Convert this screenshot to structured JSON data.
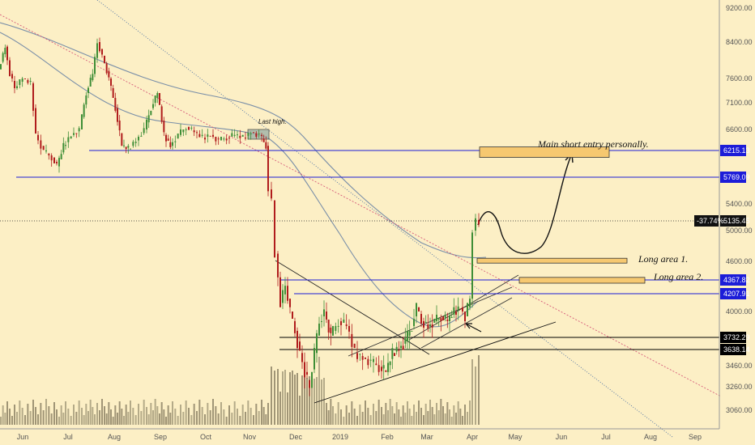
{
  "chart_data": {
    "type": "candlestick",
    "y_axis_ticks": [
      9200,
      8400,
      7600,
      7100,
      6600,
      6215.13,
      5769.09,
      5400,
      5135.45,
      5000,
      4600,
      4367.82,
      4207.91,
      4000,
      3732.29,
      3638.14,
      3460,
      3260,
      3060
    ],
    "x_axis_ticks": [
      "Jun",
      "Jul",
      "Aug",
      "Sep",
      "Oct",
      "Nov",
      "Dec",
      "2019",
      "Feb",
      "Mar",
      "Apr",
      "May",
      "Jun",
      "Jul",
      "Aug",
      "Sep"
    ],
    "horizontal_levels": [
      {
        "label": "6215.13",
        "value": 6215.13,
        "color": "#1c1cd8"
      },
      {
        "label": "5769.09",
        "value": 5769.09,
        "color": "#1c1cd8"
      },
      {
        "label": "4367.82",
        "value": 4367.82,
        "color": "#1c1cd8"
      },
      {
        "label": "4207.91",
        "value": 4207.91,
        "color": "#1c1cd8"
      },
      {
        "label": "3732.29",
        "value": 3732.29,
        "color": "#000000"
      },
      {
        "label": "3638.14",
        "value": 3638.14,
        "color": "#000000"
      }
    ],
    "current_price": {
      "label": "5135.45",
      "value": 5135.45,
      "change": "-37.74%"
    },
    "annotations": {
      "last_high": "Last high.",
      "main_short": "Main short entry personally.",
      "long_area_1": "Long area 1.",
      "long_area_2": "Long area 2."
    },
    "zones": [
      {
        "label": "Main short entry personally.",
        "low": 6100,
        "high": 6280
      },
      {
        "label": "Long area 1.",
        "low": 4580,
        "high": 4640
      },
      {
        "label": "Long area 2.",
        "low": 4330,
        "high": 4400
      }
    ],
    "colors": {
      "background": "#fcefc5",
      "up": "#3e8e36",
      "down": "#b01c1c",
      "level": "#1c1cd8",
      "zone": "#f6c870",
      "volume": "#b5a98a"
    }
  }
}
